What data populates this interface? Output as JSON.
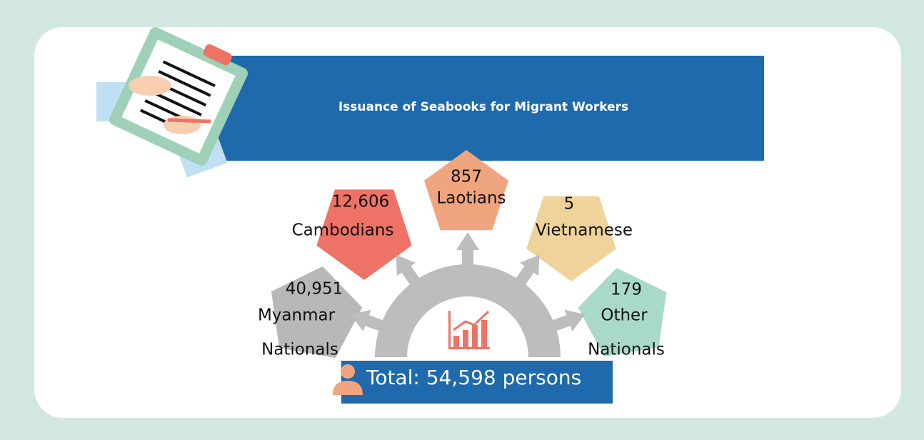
{
  "header": {
    "title": "Issuance of Seabooks for Migrant Workers"
  },
  "items": [
    {
      "value": "12,606",
      "lines": [
        "Cambodians"
      ]
    },
    {
      "value": "857",
      "lines": [
        "Laotians"
      ]
    },
    {
      "value": "5",
      "lines": [
        "Vietnamese"
      ]
    },
    {
      "value": "40,951",
      "lines": [
        "Myanmar",
        "Nationals"
      ]
    },
    {
      "value": "179",
      "lines": [
        "Other",
        "Nationals"
      ]
    }
  ],
  "total": "Total: 54,598 persons"
}
